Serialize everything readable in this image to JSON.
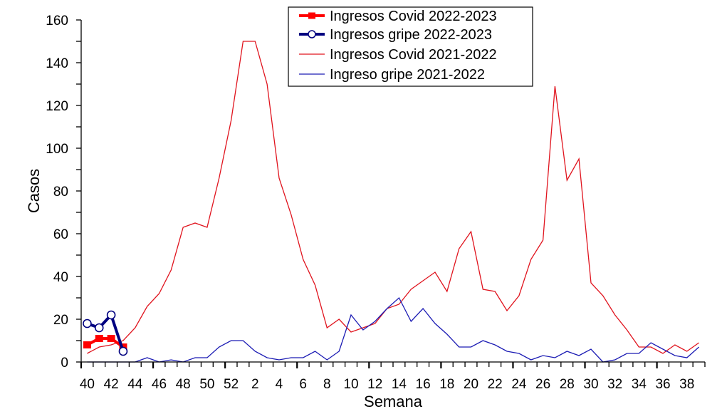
{
  "chart_data": {
    "type": "line",
    "title": "",
    "xlabel": "Semana",
    "ylabel": "Casos",
    "ylim": [
      0,
      160
    ],
    "y_ticks": [
      0,
      20,
      40,
      60,
      80,
      100,
      120,
      140,
      160
    ],
    "y_minor_step": 10,
    "grid": false,
    "legend_position": "top-center",
    "x": [
      40,
      41,
      42,
      43,
      44,
      45,
      46,
      47,
      48,
      49,
      50,
      51,
      52,
      1,
      2,
      3,
      4,
      5,
      6,
      7,
      8,
      9,
      10,
      11,
      12,
      13,
      14,
      15,
      16,
      17,
      18,
      19,
      20,
      21,
      22,
      23,
      24,
      25,
      26,
      27,
      28,
      29,
      30,
      31,
      32,
      33,
      34,
      35,
      36,
      37,
      38,
      39
    ],
    "x_tick_labels": [
      "40",
      "42",
      "44",
      "46",
      "48",
      "50",
      "52",
      "2",
      "4",
      "6",
      "8",
      "10",
      "12",
      "14",
      "16",
      "18",
      "20",
      "22",
      "24",
      "26",
      "28",
      "30",
      "32",
      "34",
      "36",
      "38"
    ],
    "series": [
      {
        "name": "Ingresos Covid 2022-2023",
        "color": "#ff0000",
        "line_width": 4,
        "marker": "square",
        "values": [
          8,
          11,
          11,
          7
        ]
      },
      {
        "name": "Ingresos gripe 2022-2023",
        "color": "#000080",
        "line_width": 4,
        "marker": "open-circle",
        "values": [
          18,
          16,
          22,
          5
        ]
      },
      {
        "name": "Ingresos Covid 2021-2022",
        "color": "#e0141e",
        "line_width": 1.3,
        "marker": "none",
        "values": [
          4,
          7,
          8,
          10,
          16,
          26,
          32,
          43,
          63,
          65,
          63,
          86,
          113,
          150,
          150,
          130,
          86,
          69,
          48,
          36,
          16,
          20,
          14,
          16,
          18,
          25,
          27,
          34,
          38,
          42,
          33,
          53,
          61,
          34,
          33,
          24,
          31,
          48,
          57,
          129,
          85,
          95,
          37,
          31,
          22,
          15,
          7,
          7,
          4,
          8,
          5,
          9
        ]
      },
      {
        "name": "Ingreso gripe 2021-2022",
        "color": "#1c1cb4",
        "line_width": 1.3,
        "marker": "none",
        "values": [
          0,
          0,
          0,
          0,
          0,
          2,
          0,
          1,
          0,
          2,
          2,
          7,
          10,
          10,
          5,
          2,
          1,
          2,
          2,
          5,
          1,
          5,
          22,
          15,
          19,
          25,
          30,
          19,
          25,
          18,
          13,
          7,
          7,
          10,
          8,
          5,
          4,
          1,
          3,
          2,
          5,
          3,
          6,
          0,
          1,
          4,
          4,
          9,
          6,
          3,
          2,
          7
        ]
      }
    ]
  }
}
